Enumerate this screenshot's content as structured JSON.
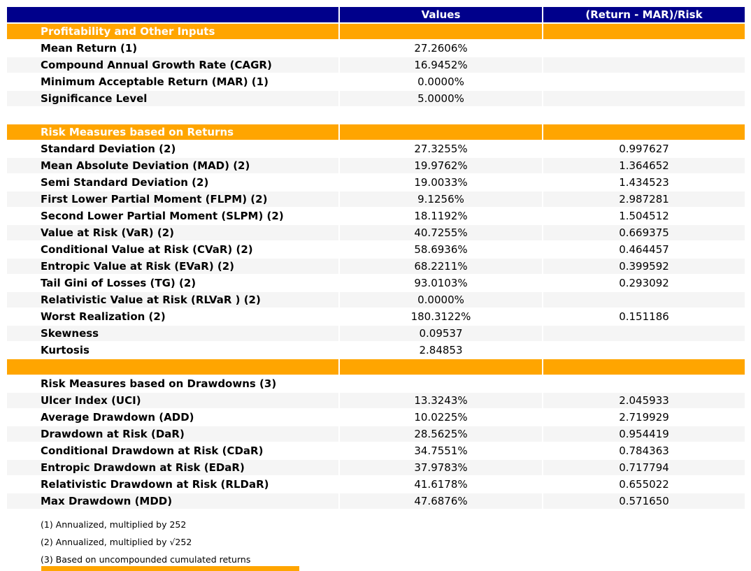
{
  "colors": {
    "navy": "#00008B",
    "orange": "#FFA500",
    "smoke": "#F5F5F5"
  },
  "chart_data": {
    "type": "table",
    "title": "",
    "columns": [
      "",
      "Values",
      "(Return - MAR)/Risk"
    ],
    "rows": [
      {
        "kind": "section",
        "label": "Profitability and Other Inputs",
        "value": "",
        "ratio": ""
      },
      {
        "kind": "data",
        "shade": false,
        "label": "Mean Return (1)",
        "value": "27.2606%",
        "ratio": ""
      },
      {
        "kind": "data",
        "shade": true,
        "label": "Compound Annual Growth Rate (CAGR)",
        "value": "16.9452%",
        "ratio": ""
      },
      {
        "kind": "data",
        "shade": false,
        "label": "Minimum Acceptable Return (MAR) (1)",
        "value": "0.0000%",
        "ratio": ""
      },
      {
        "kind": "data",
        "shade": true,
        "label": "Significance Level",
        "value": "5.0000%",
        "ratio": ""
      },
      {
        "kind": "spacer",
        "label": "",
        "value": "",
        "ratio": ""
      },
      {
        "kind": "section",
        "label": "Risk Measures based on Returns",
        "value": "",
        "ratio": ""
      },
      {
        "kind": "data",
        "shade": false,
        "label": "Standard Deviation (2)",
        "value": "27.3255%",
        "ratio": "0.997627"
      },
      {
        "kind": "data",
        "shade": true,
        "label": "Mean Absolute Deviation (MAD) (2)",
        "value": "19.9762%",
        "ratio": "1.364652"
      },
      {
        "kind": "data",
        "shade": false,
        "label": "Semi Standard Deviation (2)",
        "value": "19.0033%",
        "ratio": "1.434523"
      },
      {
        "kind": "data",
        "shade": true,
        "label": "First Lower Partial Moment (FLPM) (2)",
        "value": "9.1256%",
        "ratio": "2.987281"
      },
      {
        "kind": "data",
        "shade": false,
        "label": "Second Lower Partial Moment (SLPM) (2)",
        "value": "18.1192%",
        "ratio": "1.504512"
      },
      {
        "kind": "data",
        "shade": true,
        "label": "Value at Risk (VaR) (2)",
        "value": "40.7255%",
        "ratio": "0.669375"
      },
      {
        "kind": "data",
        "shade": false,
        "label": "Conditional Value at Risk (CVaR) (2)",
        "value": "58.6936%",
        "ratio": "0.464457"
      },
      {
        "kind": "data",
        "shade": true,
        "label": "Entropic Value at Risk (EVaR) (2)",
        "value": "68.2211%",
        "ratio": "0.399592"
      },
      {
        "kind": "data",
        "shade": false,
        "label": "Tail Gini of Losses (TG) (2)",
        "value": "93.0103%",
        "ratio": "0.293092"
      },
      {
        "kind": "data",
        "shade": true,
        "label": "Relativistic Value at Risk (RLVaR ) (2)",
        "value": "0.0000%",
        "ratio": ""
      },
      {
        "kind": "data",
        "shade": false,
        "label": "Worst Realization (2)",
        "value": "180.3122%",
        "ratio": "0.151186"
      },
      {
        "kind": "data",
        "shade": true,
        "label": "Skewness",
        "value": "0.09537",
        "ratio": ""
      },
      {
        "kind": "data",
        "shade": false,
        "label": "Kurtosis",
        "value": "2.84853",
        "ratio": ""
      },
      {
        "kind": "spacer-orange",
        "label": "",
        "value": "",
        "ratio": ""
      },
      {
        "kind": "section-plain",
        "label": "Risk Measures based on Drawdowns (3)",
        "value": "",
        "ratio": ""
      },
      {
        "kind": "data",
        "shade": true,
        "label": "Ulcer Index (UCI)",
        "value": "13.3243%",
        "ratio": "2.045933"
      },
      {
        "kind": "data",
        "shade": false,
        "label": "Average Drawdown (ADD)",
        "value": "10.0225%",
        "ratio": "2.719929"
      },
      {
        "kind": "data",
        "shade": true,
        "label": "Drawdown at Risk (DaR)",
        "value": "28.5625%",
        "ratio": "0.954419"
      },
      {
        "kind": "data",
        "shade": false,
        "label": "Conditional Drawdown at Risk (CDaR)",
        "value": "34.7551%",
        "ratio": "0.784363"
      },
      {
        "kind": "data",
        "shade": true,
        "label": "Entropic Drawdown at Risk (EDaR)",
        "value": "37.9783%",
        "ratio": "0.717794"
      },
      {
        "kind": "data",
        "shade": false,
        "label": "Relativistic Drawdown at Risk (RLDaR)",
        "value": "41.6178%",
        "ratio": "0.655022"
      },
      {
        "kind": "data",
        "shade": true,
        "label": "Max Drawdown (MDD)",
        "value": "47.6876%",
        "ratio": "0.571650"
      }
    ]
  },
  "header": {
    "metric": "",
    "values": "Values",
    "ratio": "(Return - MAR)/Risk"
  },
  "footnotes": [
    "(1) Annualized, multiplied by 252",
    "(2) Annualized, multiplied by √252",
    "(3) Based on uncompounded cumulated returns"
  ]
}
